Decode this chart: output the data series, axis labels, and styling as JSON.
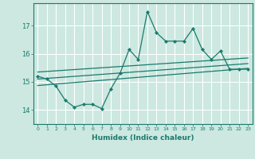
{
  "title": "",
  "xlabel": "Humidex (Indice chaleur)",
  "ylabel": "",
  "bg_color": "#cce8e0",
  "grid_color": "#ffffff",
  "line_color": "#1a7a6e",
  "xlim": [
    -0.5,
    23.5
  ],
  "ylim": [
    13.5,
    17.8
  ],
  "yticks": [
    14,
    15,
    16,
    17
  ],
  "xticks": [
    0,
    1,
    2,
    3,
    4,
    5,
    6,
    7,
    8,
    9,
    10,
    11,
    12,
    13,
    14,
    15,
    16,
    17,
    18,
    19,
    20,
    21,
    22,
    23
  ],
  "main_x": [
    0,
    1,
    2,
    3,
    4,
    5,
    6,
    7,
    8,
    9,
    10,
    11,
    12,
    13,
    14,
    15,
    16,
    17,
    18,
    19,
    20,
    21,
    22,
    23
  ],
  "main_y": [
    15.2,
    15.1,
    14.85,
    14.35,
    14.1,
    14.2,
    14.2,
    14.05,
    14.75,
    15.3,
    16.15,
    15.8,
    17.5,
    16.75,
    16.45,
    16.45,
    16.45,
    16.9,
    16.15,
    15.8,
    16.1,
    15.45,
    15.45,
    15.45
  ],
  "line1_x": [
    0,
    23
  ],
  "line1_y": [
    15.35,
    15.85
  ],
  "line2_x": [
    0,
    23
  ],
  "line2_y": [
    15.1,
    15.65
  ],
  "line3_x": [
    0,
    23
  ],
  "line3_y": [
    14.87,
    15.48
  ]
}
